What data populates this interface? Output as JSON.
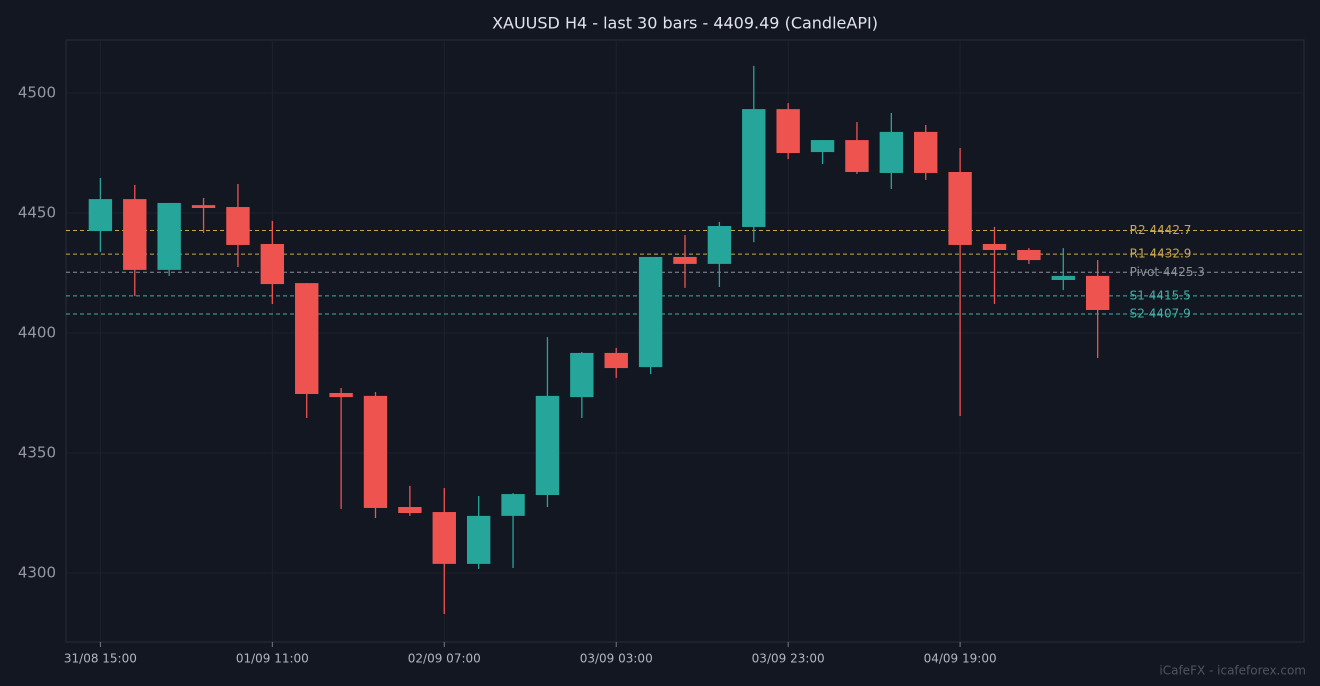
{
  "chart_data": {
    "type": "candlestick",
    "title": "XAUUSD H4 - last 30 bars - 4409.49 (CandleAPI)",
    "categories": [
      "31/08 15:00",
      null,
      null,
      null,
      null,
      "01/09 11:00",
      null,
      null,
      null,
      null,
      "02/09 07:00",
      null,
      null,
      null,
      null,
      "03/09 03:00",
      null,
      null,
      null,
      null,
      "03/09 23:00",
      null,
      null,
      null,
      null,
      "04/09 19:00",
      null,
      null,
      null,
      null
    ],
    "open": [
      4442.5,
      4455.8,
      4426.3,
      4453.3,
      4452.5,
      4437.1,
      4420.8,
      4375.0,
      4373.8,
      4327.5,
      4325.4,
      4303.8,
      4323.8,
      4332.5,
      4373.3,
      4391.7,
      4385.8,
      4431.7,
      4428.8,
      4444.2,
      4493.3,
      4475.4,
      4480.4,
      4466.7,
      4483.8,
      4467.1,
      4437.1,
      4434.6,
      4422.1,
      4423.8
    ],
    "high": [
      4464.6,
      4461.7,
      4454.2,
      4456.3,
      4462.1,
      4446.7,
      4420.8,
      4377.1,
      4375.4,
      4336.3,
      4335.4,
      4332.1,
      4333.3,
      4398.3,
      4392.1,
      4393.8,
      4431.7,
      4440.8,
      4446.3,
      4511.3,
      4495.8,
      4480.4,
      4487.9,
      4491.7,
      4486.7,
      4477.1,
      4444.2,
      4435.4,
      4435.4,
      4430.4
    ],
    "low": [
      4433.8,
      4415.4,
      4423.8,
      4441.7,
      4427.5,
      4412.1,
      4364.6,
      4326.7,
      4322.9,
      4323.8,
      4282.9,
      4301.7,
      4302.1,
      4327.5,
      4364.6,
      4381.3,
      4382.9,
      4418.8,
      4419.2,
      4437.9,
      4472.5,
      4470.4,
      4466.3,
      4460.0,
      4463.8,
      4365.4,
      4412.1,
      4428.8,
      4417.9,
      4389.6
    ],
    "close": [
      4455.8,
      4426.3,
      4454.2,
      4452.1,
      4436.7,
      4420.4,
      4374.6,
      4373.3,
      4327.1,
      4325.0,
      4303.8,
      4323.8,
      4332.9,
      4373.8,
      4391.7,
      4385.4,
      4431.7,
      4428.8,
      4444.6,
      4493.3,
      4475.0,
      4480.4,
      4467.1,
      4483.8,
      4466.7,
      4436.7,
      4434.6,
      4430.4,
      4423.8,
      4409.6
    ],
    "up_color": "#26a69a",
    "down_color": "#ef5350",
    "ylim": [
      4271.25,
      4522.1
    ],
    "yticks": [
      4300,
      4350,
      4400,
      4450,
      4500
    ],
    "grid": true,
    "levels": [
      {
        "label": "R2 4442.7",
        "value": 4442.7,
        "color": "#c9a84c"
      },
      {
        "label": "R1 4432.9",
        "value": 4432.9,
        "color": "#c9a84c"
      },
      {
        "label": "Pivot 4425.3",
        "value": 4425.3,
        "color": "#8a8f99"
      },
      {
        "label": "S1 4415.5",
        "value": 4415.5,
        "color": "#3fb1a5"
      },
      {
        "label": "S2 4407.9",
        "value": 4407.9,
        "color": "#3fb1a5"
      }
    ],
    "watermark": "iCafeFX - icafeforex.com"
  }
}
